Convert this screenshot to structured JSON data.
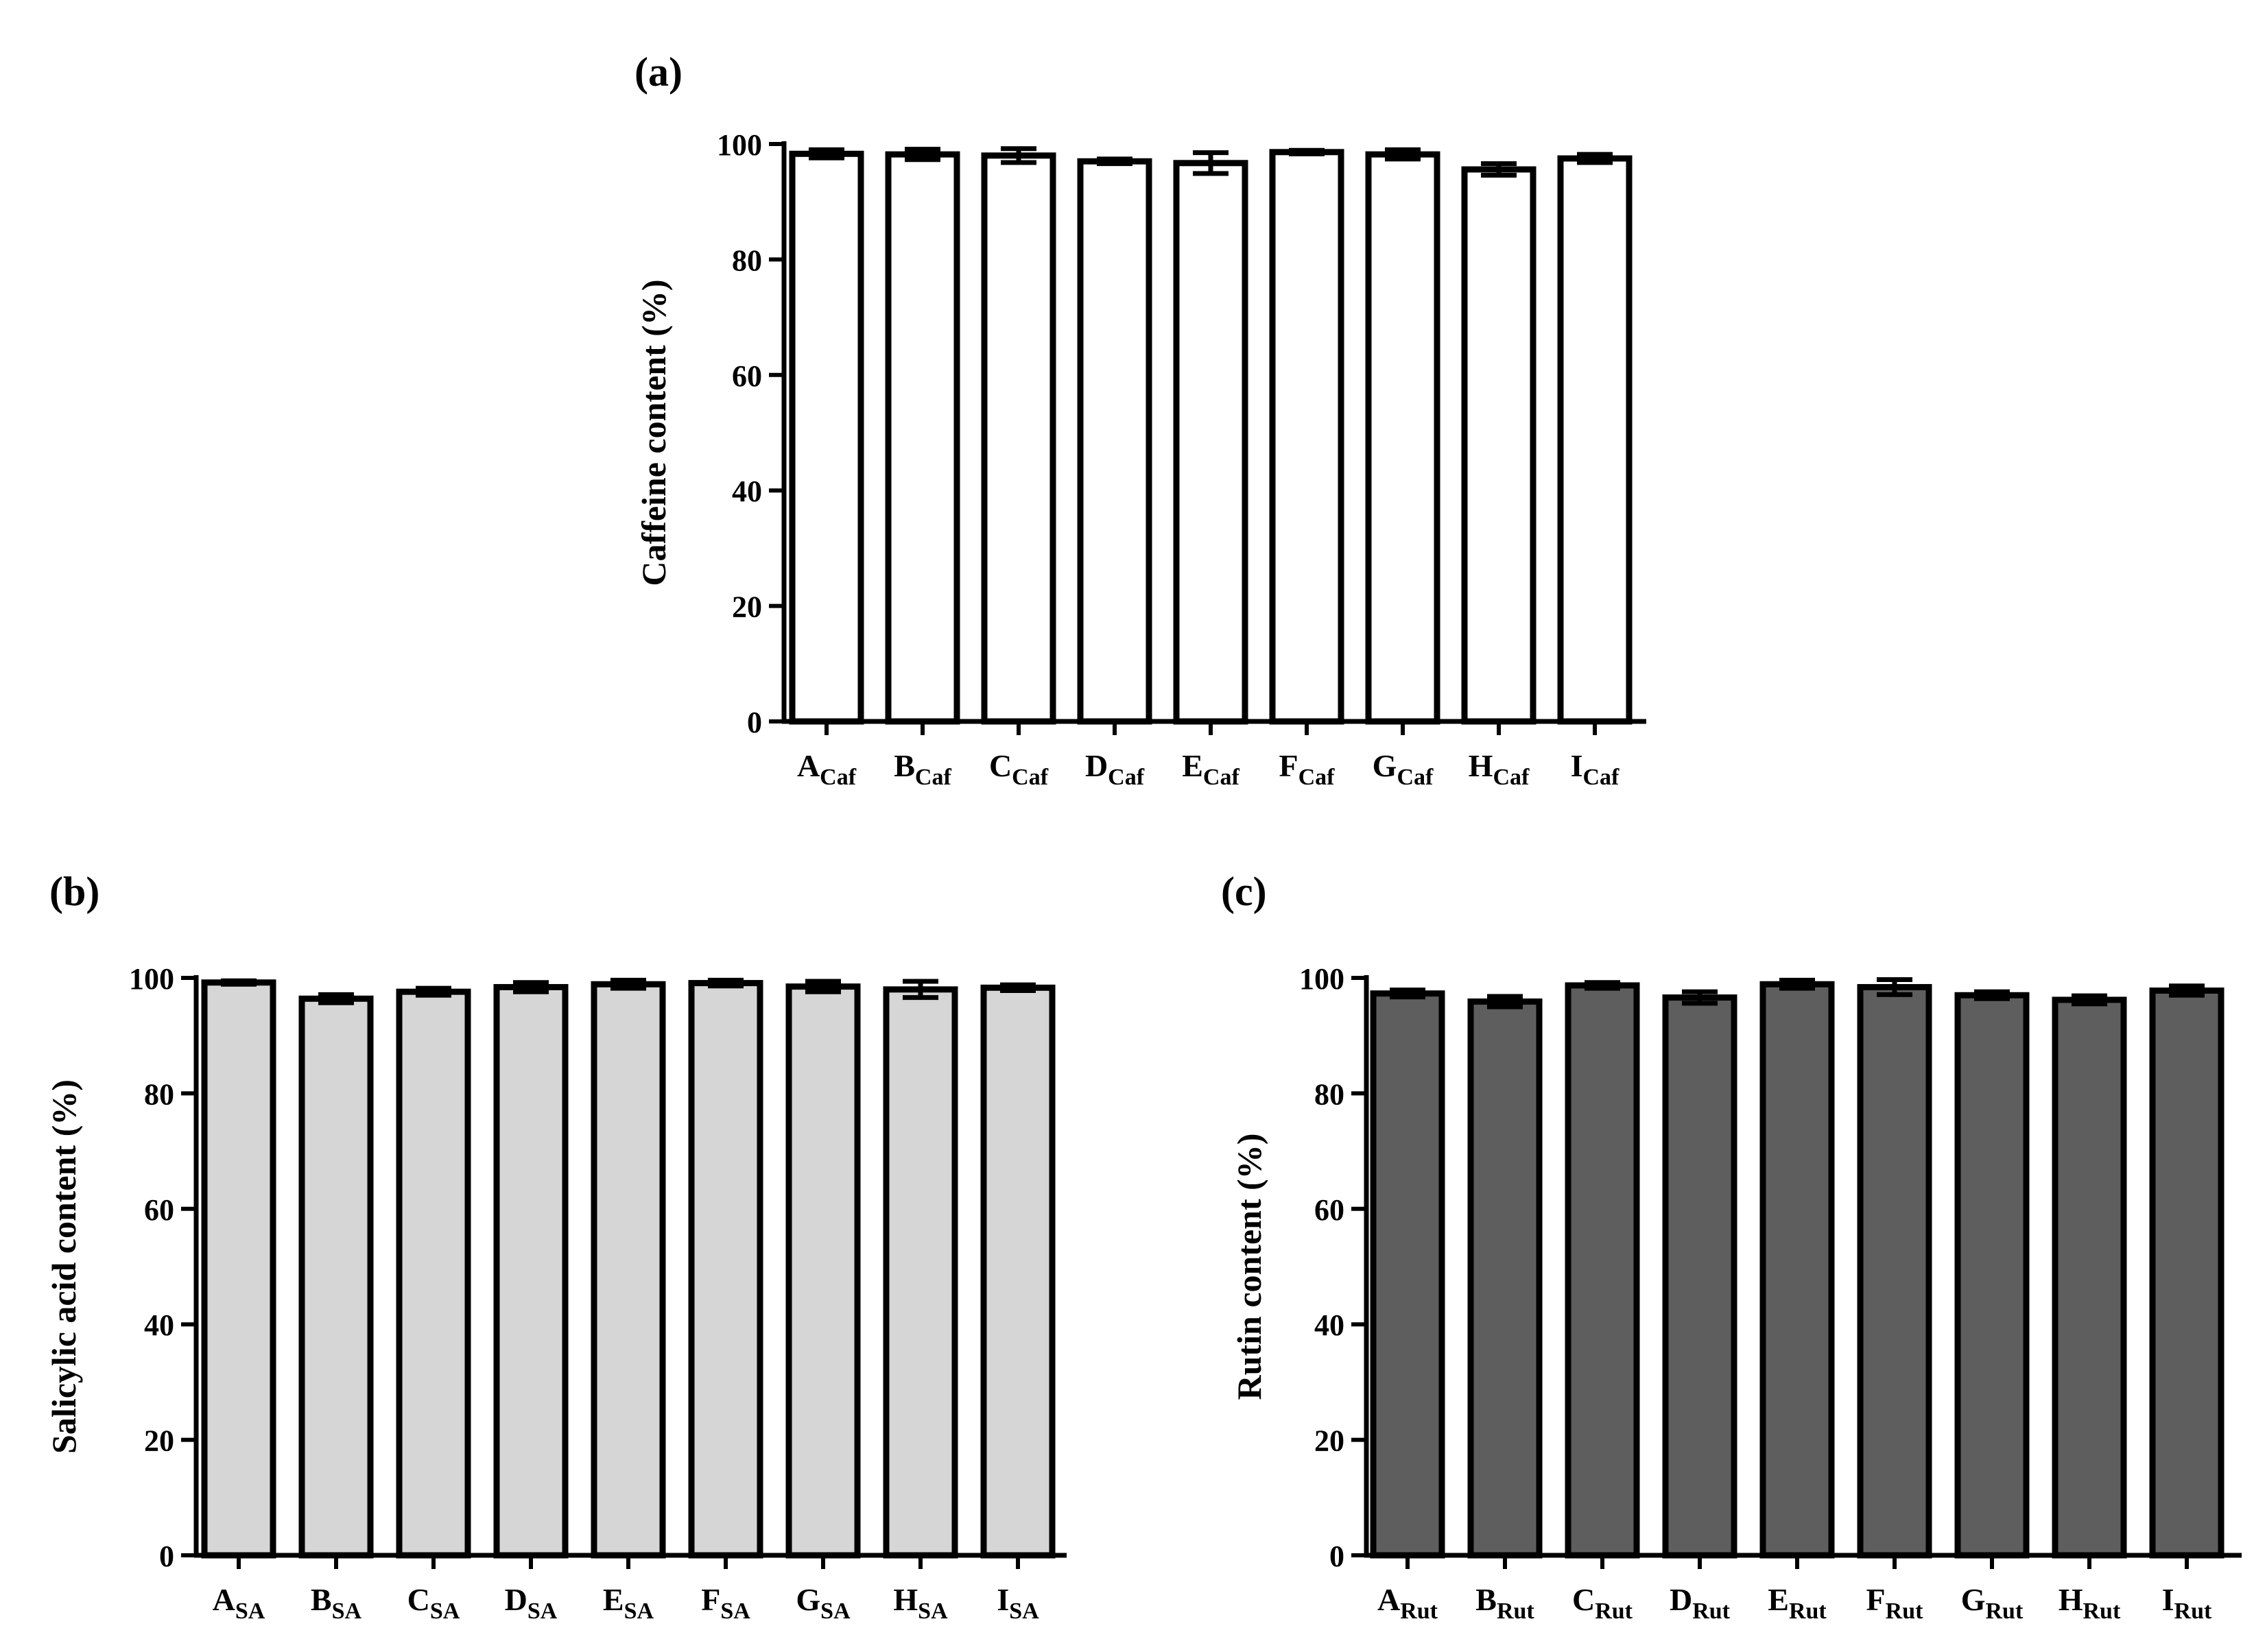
{
  "chart_data": [
    {
      "panel_label": "(a)",
      "type": "bar",
      "ylabel": "Caffeine content (%)",
      "ylim": [
        0,
        100
      ],
      "yticks": [
        0,
        20,
        40,
        60,
        80,
        100
      ],
      "bar_color": "#ffffff",
      "categories": [
        {
          "main": "A",
          "sub": "Caf"
        },
        {
          "main": "B",
          "sub": "Caf"
        },
        {
          "main": "C",
          "sub": "Caf"
        },
        {
          "main": "D",
          "sub": "Caf"
        },
        {
          "main": "E",
          "sub": "Caf"
        },
        {
          "main": "F",
          "sub": "Caf"
        },
        {
          "main": "G",
          "sub": "Caf"
        },
        {
          "main": "H",
          "sub": "Caf"
        },
        {
          "main": "I",
          "sub": "Caf"
        }
      ],
      "values": [
        98.3,
        98.2,
        98.0,
        97.0,
        96.7,
        98.6,
        98.2,
        95.6,
        97.5
      ],
      "errors": [
        0.7,
        0.9,
        1.2,
        0.4,
        1.8,
        0.3,
        0.8,
        1.0,
        0.7
      ]
    },
    {
      "panel_label": "(b)",
      "type": "bar",
      "ylabel": "Salicylic acid content (%)",
      "ylim": [
        0,
        100
      ],
      "yticks": [
        0,
        20,
        40,
        60,
        80,
        100
      ],
      "bar_color": "#d6d6d6",
      "categories": [
        {
          "main": "A",
          "sub": "SA"
        },
        {
          "main": "B",
          "sub": "SA"
        },
        {
          "main": "C",
          "sub": "SA"
        },
        {
          "main": "D",
          "sub": "SA"
        },
        {
          "main": "E",
          "sub": "SA"
        },
        {
          "main": "F",
          "sub": "SA"
        },
        {
          "main": "G",
          "sub": "SA"
        },
        {
          "main": "H",
          "sub": "SA"
        },
        {
          "main": "I",
          "sub": "SA"
        }
      ],
      "values": [
        99.2,
        96.4,
        97.6,
        98.4,
        98.9,
        99.1,
        98.5,
        98.0,
        98.3
      ],
      "errors": [
        0.3,
        0.7,
        0.6,
        0.8,
        0.7,
        0.5,
        0.9,
        1.4,
        0.5
      ]
    },
    {
      "panel_label": "(c)",
      "type": "bar",
      "ylabel": "Rutin content (%)",
      "ylim": [
        0,
        100
      ],
      "yticks": [
        0,
        20,
        40,
        60,
        80,
        100
      ],
      "bar_color": "#5e5e5e",
      "categories": [
        {
          "main": "A",
          "sub": "Rut"
        },
        {
          "main": "B",
          "sub": "Rut"
        },
        {
          "main": "C",
          "sub": "Rut"
        },
        {
          "main": "D",
          "sub": "Rut"
        },
        {
          "main": "E",
          "sub": "Rut"
        },
        {
          "main": "F",
          "sub": "Rut"
        },
        {
          "main": "G",
          "sub": "Rut"
        },
        {
          "main": "H",
          "sub": "Rut"
        },
        {
          "main": "I",
          "sub": "Rut"
        }
      ],
      "values": [
        97.3,
        95.9,
        98.7,
        96.6,
        98.9,
        98.4,
        97.0,
        96.2,
        97.8
      ],
      "errors": [
        0.6,
        0.9,
        0.5,
        1.0,
        0.7,
        1.3,
        0.6,
        0.7,
        0.8
      ]
    }
  ]
}
